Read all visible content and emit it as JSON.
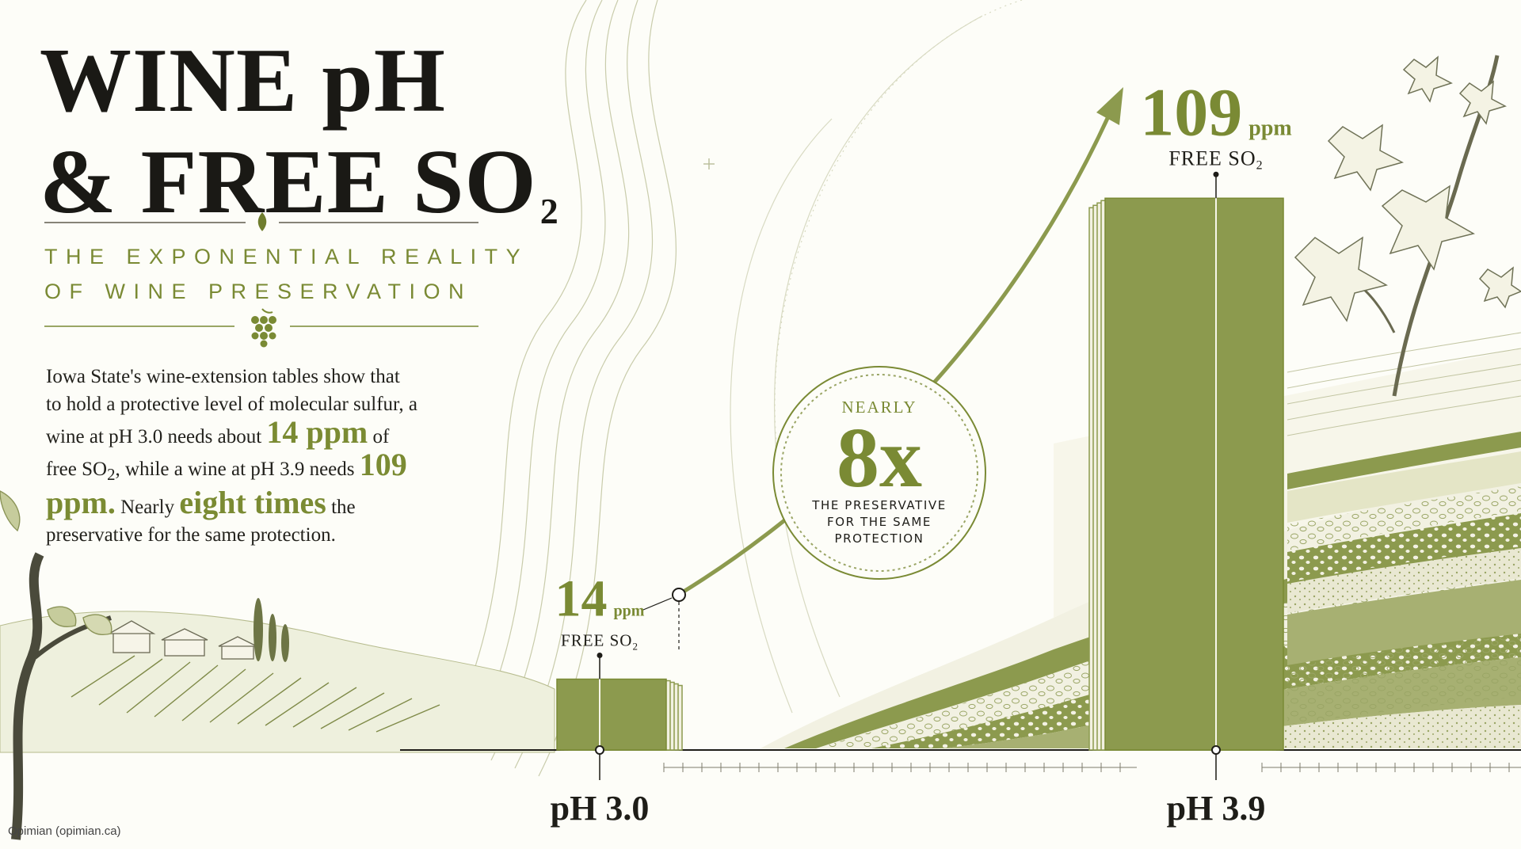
{
  "title": {
    "line1": "WINE pH",
    "line2": "& FREE SO",
    "line2_sub": "2"
  },
  "subtitle": {
    "line1": "THE EXPONENTIAL REALITY",
    "line2": "OF WINE PRESERVATION"
  },
  "body": {
    "p1": "Iowa State's wine-extension tables show that to hold a protective level of molecular sulfur, a wine at pH 3.0 needs about",
    "hl1": "14 ppm",
    "p2": "of free SO",
    "p2_sub": "2",
    "p3": ", while a wine at pH 3.9 needs",
    "hl2": "109 ppm.",
    "p4": "Nearly",
    "hl3": "eight times",
    "p5": "the preservative for the same protection."
  },
  "chart_data": {
    "type": "bar",
    "categories": [
      "pH 3.0",
      "pH 3.9"
    ],
    "values": [
      14,
      109
    ],
    "units": "ppm",
    "value_caption": "FREE SO",
    "value_caption_sub": "2",
    "ylim": [
      0,
      125
    ],
    "annotation": {
      "top": "NEARLY",
      "value": "8x",
      "lines": [
        "THE PRESERVATIVE",
        "FOR THE SAME",
        "PROTECTION"
      ]
    }
  },
  "colors": {
    "olive": "#8c9a4e",
    "olive_dark": "#7a8a34",
    "ink": "#1e1d18",
    "background": "#fdfdf8"
  },
  "credit": "Opimian (opimian.ca)"
}
